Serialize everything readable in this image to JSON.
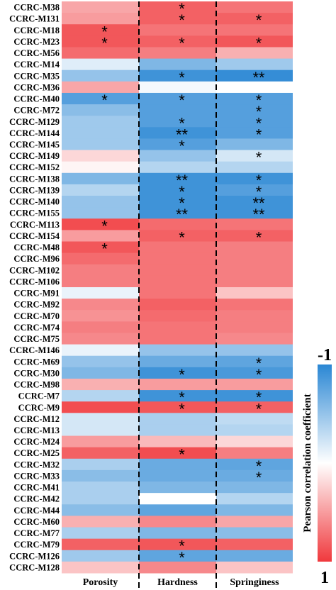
{
  "chart_data": {
    "type": "heatmap",
    "columns": [
      "Porosity",
      "Hardness",
      "Springiness"
    ],
    "rows": [
      "CCRC-M38",
      "CCRC-M131",
      "CCRC-M18",
      "CCRC-M23",
      "CCRC-M56",
      "CCRC-M14",
      "CCRC-M35",
      "CCRC-M36",
      "CCRC-M40",
      "CCRC-M72",
      "CCRC-M129",
      "CCRC-M144",
      "CCRC-M145",
      "CCRC-M149",
      "CCRC-M152",
      "CCRC-M138",
      "CCRC-M139",
      "CCRC-M140",
      "CCRC-M155",
      "CCRC-M113",
      "CCRC-M154",
      "CCRC-M48",
      "CCRC-M96",
      "CCRC-M102",
      "CCRC-M106",
      "CCRC-M91",
      "CCRC-M92",
      "CCRC-M70",
      "CCRC-M74",
      "CCRC-M75",
      "CCRC-M146",
      "CCRC-M69",
      "CCRC-M30",
      "CCRC-M98",
      "CCRC-M7",
      "CCRC-M9",
      "CCRC-M12",
      "CCRC-M13",
      "CCRC-M24",
      "CCRC-M25",
      "CCRC-M32",
      "CCRC-M33",
      "CCRC-M41",
      "CCRC-M42",
      "CCRC-M44",
      "CCRC-M60",
      "CCRC-M77",
      "CCRC-M79",
      "CCRC-M126",
      "CCRC-M128"
    ],
    "values": [
      [
        0.45,
        0.8,
        0.7
      ],
      [
        0.5,
        0.8,
        0.8
      ],
      [
        0.85,
        0.7,
        0.7
      ],
      [
        0.85,
        0.8,
        0.85
      ],
      [
        0.75,
        0.65,
        0.4
      ],
      [
        -0.15,
        -0.6,
        -0.45
      ],
      [
        -0.5,
        -0.9,
        -0.95
      ],
      [
        0.45,
        -0.05,
        0.0
      ],
      [
        -0.8,
        -0.8,
        -0.8
      ],
      [
        -0.55,
        -0.8,
        -0.8
      ],
      [
        -0.45,
        -0.8,
        -0.8
      ],
      [
        -0.45,
        -0.9,
        -0.8
      ],
      [
        -0.45,
        -0.8,
        -0.6
      ],
      [
        0.2,
        -0.5,
        -0.2
      ],
      [
        0.05,
        -0.35,
        -0.35
      ],
      [
        -0.6,
        -0.9,
        -0.9
      ],
      [
        -0.35,
        -0.9,
        -0.8
      ],
      [
        -0.5,
        -0.9,
        -0.9
      ],
      [
        -0.5,
        -0.9,
        -0.9
      ],
      [
        0.9,
        0.75,
        0.7
      ],
      [
        0.5,
        0.8,
        0.8
      ],
      [
        0.85,
        0.7,
        0.65
      ],
      [
        0.75,
        0.7,
        0.65
      ],
      [
        0.65,
        0.7,
        0.65
      ],
      [
        0.65,
        0.7,
        0.65
      ],
      [
        -0.1,
        0.7,
        0.3
      ],
      [
        0.6,
        0.8,
        0.7
      ],
      [
        0.55,
        0.75,
        0.65
      ],
      [
        0.65,
        0.7,
        0.65
      ],
      [
        0.6,
        0.7,
        0.6
      ],
      [
        -0.1,
        -0.5,
        -0.5
      ],
      [
        -0.5,
        -0.7,
        -0.75
      ],
      [
        -0.6,
        -0.9,
        -0.85
      ],
      [
        0.4,
        0.5,
        0.5
      ],
      [
        -0.35,
        -0.9,
        -0.9
      ],
      [
        0.9,
        0.85,
        0.8
      ],
      [
        -0.2,
        -0.4,
        -0.3
      ],
      [
        -0.2,
        -0.4,
        -0.35
      ],
      [
        0.5,
        0.35,
        0.2
      ],
      [
        0.8,
        0.9,
        0.65
      ],
      [
        -0.4,
        -0.7,
        -0.75
      ],
      [
        -0.55,
        -0.7,
        -0.7
      ],
      [
        -0.4,
        -0.6,
        -0.6
      ],
      [
        -0.4,
        0.0,
        -0.35
      ],
      [
        -0.55,
        -0.75,
        -0.6
      ],
      [
        0.4,
        0.6,
        0.45
      ],
      [
        -0.4,
        -0.6,
        -0.55
      ],
      [
        0.8,
        0.85,
        0.8
      ],
      [
        -0.45,
        -0.75,
        -0.7
      ],
      [
        0.3,
        0.6,
        0.3
      ]
    ],
    "significance": [
      [
        "",
        "*",
        ""
      ],
      [
        "",
        "*",
        "*"
      ],
      [
        "*",
        "",
        ""
      ],
      [
        "*",
        "*",
        "*"
      ],
      [
        "",
        "",
        ""
      ],
      [
        "",
        "",
        ""
      ],
      [
        "",
        "*",
        "**"
      ],
      [
        "",
        "",
        ""
      ],
      [
        "*",
        "*",
        "*"
      ],
      [
        "",
        "",
        "*"
      ],
      [
        "",
        "*",
        "*"
      ],
      [
        "",
        "**",
        "*"
      ],
      [
        "",
        "*",
        ""
      ],
      [
        "",
        "",
        "*"
      ],
      [
        "",
        "",
        ""
      ],
      [
        "",
        "**",
        "*"
      ],
      [
        "",
        "*",
        "*"
      ],
      [
        "",
        "*",
        "**"
      ],
      [
        "",
        "**",
        "**"
      ],
      [
        "*",
        "",
        ""
      ],
      [
        "",
        "*",
        "*"
      ],
      [
        "*",
        "",
        ""
      ],
      [
        "",
        "",
        ""
      ],
      [
        "",
        "",
        ""
      ],
      [
        "",
        "",
        ""
      ],
      [
        "",
        "",
        ""
      ],
      [
        "",
        "",
        ""
      ],
      [
        "",
        "",
        ""
      ],
      [
        "",
        "",
        ""
      ],
      [
        "",
        "",
        ""
      ],
      [
        "",
        "",
        ""
      ],
      [
        "",
        "",
        "*"
      ],
      [
        "",
        "*",
        "*"
      ],
      [
        "",
        "",
        ""
      ],
      [
        "",
        "*",
        "*"
      ],
      [
        "",
        "*",
        "*"
      ],
      [
        "",
        "",
        ""
      ],
      [
        "",
        "",
        ""
      ],
      [
        "",
        "",
        ""
      ],
      [
        "",
        "*",
        ""
      ],
      [
        "",
        "",
        "*"
      ],
      [
        "",
        "",
        "*"
      ],
      [
        "",
        "",
        ""
      ],
      [
        "",
        "",
        ""
      ],
      [
        "",
        "",
        ""
      ],
      [
        "",
        "",
        ""
      ],
      [
        "",
        "",
        ""
      ],
      [
        "",
        "*",
        ""
      ],
      [
        "",
        "*",
        ""
      ],
      [
        "",
        "",
        ""
      ]
    ],
    "color_scale": {
      "min": -1,
      "max": 1,
      "min_label": "-1",
      "max_label": "1",
      "negative_color": "#2a87d4",
      "zero_color": "#ffffff",
      "positive_color": "#f0393d",
      "title": "Pearson correlation coefficient"
    }
  }
}
